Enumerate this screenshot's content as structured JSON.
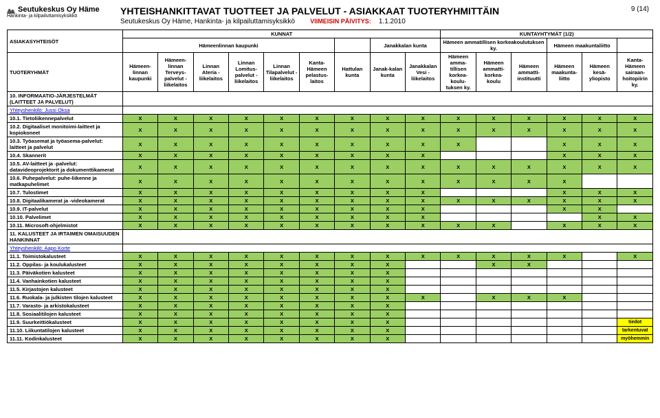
{
  "page_number": "9 (14)",
  "logo": {
    "name": "Seutukeskus Oy Häme",
    "subtitle": "Hankinta- ja kilpailuttamisyksikkö"
  },
  "header": {
    "title": "YHTEISHANKITTAVAT TUOTTEET JA PALVELUT - ASIAKKAAT TUOTERYHMITTÄIN",
    "sub": "Seutukeskus Oy Häme, Hankinta- ja kilpailuttamisyksikkö",
    "update_label": "VIIMEISIN PÄIVITYS:",
    "update_date": "1.1.2010"
  },
  "table": {
    "top_left1": "ASIAKASYHTEISÖT",
    "top_left2": "TUOTERYHMÄT",
    "group_kunnat": "KUNNAT",
    "group_kuntayht": "KUNTAYHTYMÄT (1/2)",
    "sub_hml": "Hämeenlinnan kaupunki",
    "sub_janakkala": "Janakkalan kunta",
    "sub_hamk": "Hämeen ammatillisen korkeakoulutuksen ky.",
    "sub_maakunta": "Hämeen maakuntaliitto",
    "cols": [
      "Hämeen-linnan kaupunki",
      "Hämeen-linnan Terveys-palvelut -liikelaitos",
      "Linnan Ateria -liikelaitos",
      "Linnan Lomitus-palvelut -liikelaitos",
      "Linnan Tilapalvelut -liikelaitos",
      "Kanta-Hämeen pelastus-laitos",
      "Hattulan kunta",
      "Janak-kalan kunta",
      "Janakkalan Vesi -liikelaitos",
      "Hämeen amma-tillisen korkea-koulu-tuksen ky.",
      "Hämeen ammatti-korkea-koulu",
      "Hämeen ammatti-instituutti",
      "Hämeen maakunta-liitto",
      "Hämeen kesä-yliopisto",
      "Kanta-Hämeen sairaan-hoitopiirin ky."
    ]
  },
  "section1": {
    "head": "10. INFORMAATIO-JÄRJESTELMÄT (LAITTEET JA PALVELUT)",
    "contact": "Yhteyshenkilö: Jussi Oksa"
  },
  "rows1": [
    {
      "label": "10.1. Tietoliikennepalvelut",
      "x": [
        1,
        1,
        1,
        1,
        1,
        1,
        1,
        1,
        1,
        1,
        1,
        1,
        1,
        1,
        1
      ]
    },
    {
      "label": "10.2. Digitaaliset monitoimi-laitteet ja kopiokoneet",
      "x": [
        1,
        1,
        1,
        1,
        1,
        1,
        1,
        1,
        1,
        1,
        1,
        1,
        1,
        1,
        1
      ]
    },
    {
      "label": "10.3. Työasemat ja työasema-palvelut: laitteet ja palvelut",
      "x": [
        1,
        1,
        1,
        1,
        1,
        1,
        1,
        1,
        1,
        1,
        0,
        0,
        1,
        1,
        1
      ]
    },
    {
      "label": "10.4. Skannerit",
      "x": [
        1,
        1,
        1,
        1,
        1,
        1,
        1,
        1,
        1,
        0,
        0,
        0,
        1,
        1,
        1
      ]
    },
    {
      "label": "10.5. AV-laitteet ja -palvelut: datavideoprojektorit ja dokumenttikamerat",
      "x": [
        1,
        1,
        1,
        1,
        1,
        1,
        1,
        1,
        1,
        1,
        1,
        1,
        1,
        1,
        1
      ]
    },
    {
      "label": "10.6. Puhepalvelut: puhe-liikenne ja matkapuhelimet",
      "x": [
        1,
        1,
        1,
        1,
        1,
        1,
        1,
        1,
        1,
        1,
        1,
        1,
        1,
        0,
        0
      ]
    },
    {
      "label": "10.7. Tulostimet",
      "x": [
        1,
        1,
        1,
        1,
        1,
        1,
        1,
        1,
        1,
        0,
        0,
        0,
        1,
        1,
        1
      ]
    },
    {
      "label": "10.8. Digitaalikamerat ja -videokamerat",
      "x": [
        1,
        1,
        1,
        1,
        1,
        1,
        1,
        1,
        1,
        1,
        1,
        1,
        1,
        1,
        1
      ]
    },
    {
      "label": "10.9. IT-palvelut",
      "x": [
        1,
        1,
        1,
        1,
        1,
        1,
        1,
        1,
        1,
        0,
        0,
        0,
        1,
        1,
        0
      ]
    },
    {
      "label": "10.10. Palvelimet",
      "x": [
        1,
        1,
        1,
        1,
        1,
        1,
        1,
        1,
        1,
        0,
        0,
        0,
        0,
        1,
        1
      ]
    },
    {
      "label": "10.11. Microsoft-ohjelmistot",
      "x": [
        1,
        1,
        1,
        1,
        1,
        1,
        1,
        1,
        1,
        1,
        1,
        0,
        1,
        1,
        1
      ]
    }
  ],
  "section2": {
    "head": "11. KALUSTEET JA IRTAIMEN OMAISUUDEN HANKINNAT",
    "contact": "Yhteyshenkilö: Aapo Korte"
  },
  "rows2": [
    {
      "label": "11.1. Toimistokalusteet",
      "x": [
        1,
        1,
        1,
        1,
        1,
        1,
        1,
        1,
        1,
        1,
        1,
        1,
        1,
        0,
        1
      ]
    },
    {
      "label": "11.2. Oppilas- ja koulukalusteet",
      "x": [
        1,
        1,
        1,
        1,
        1,
        1,
        1,
        1,
        0,
        0,
        1,
        1,
        0,
        0,
        0
      ]
    },
    {
      "label": "11.3. Päiväkotien kalusteet",
      "x": [
        1,
        1,
        1,
        1,
        1,
        1,
        1,
        1,
        0,
        0,
        0,
        0,
        0,
        0,
        0
      ]
    },
    {
      "label": "11.4. Vanhainkotien kalusteet",
      "x": [
        1,
        1,
        1,
        1,
        1,
        1,
        1,
        1,
        0,
        0,
        0,
        0,
        0,
        0,
        0
      ]
    },
    {
      "label": "11.5. Kirjastojen kalusteet",
      "x": [
        1,
        1,
        1,
        1,
        1,
        1,
        1,
        1,
        0,
        0,
        0,
        0,
        0,
        0,
        0
      ]
    },
    {
      "label": "11.6. Ruokala- ja julkisten tilojen kalusteet",
      "x": [
        1,
        1,
        1,
        1,
        1,
        1,
        1,
        1,
        1,
        0,
        1,
        1,
        1,
        0,
        0
      ]
    },
    {
      "label": "11.7. Varasto- ja arkistokalusteet",
      "x": [
        1,
        1,
        1,
        1,
        1,
        1,
        1,
        1,
        0,
        0,
        0,
        0,
        0,
        0,
        0
      ]
    },
    {
      "label": "11.8. Sosiaalitilojen kalusteet",
      "x": [
        1,
        1,
        1,
        1,
        1,
        1,
        1,
        1,
        0,
        0,
        0,
        0,
        0,
        0,
        0
      ]
    },
    {
      "label": "11.9. Suurkeittiökalusteet",
      "x": [
        1,
        1,
        1,
        1,
        1,
        1,
        1,
        1,
        0,
        0,
        0,
        0,
        0,
        0,
        0
      ],
      "note": "tiedot"
    },
    {
      "label": "11.10. Liikuntatilojen kalusteet",
      "x": [
        1,
        1,
        1,
        1,
        1,
        1,
        1,
        1,
        0,
        0,
        0,
        0,
        0,
        0,
        0
      ],
      "note": "tarkentuvat"
    },
    {
      "label": "11.11. Kodinkalusteet",
      "x": [
        1,
        1,
        1,
        1,
        1,
        1,
        1,
        1,
        0,
        0,
        0,
        0,
        0,
        0,
        0
      ],
      "note": "myöhemmin"
    }
  ],
  "styling": {
    "green": "#9bcf63",
    "yellow": "#ffff00",
    "link": "#0000cc"
  }
}
